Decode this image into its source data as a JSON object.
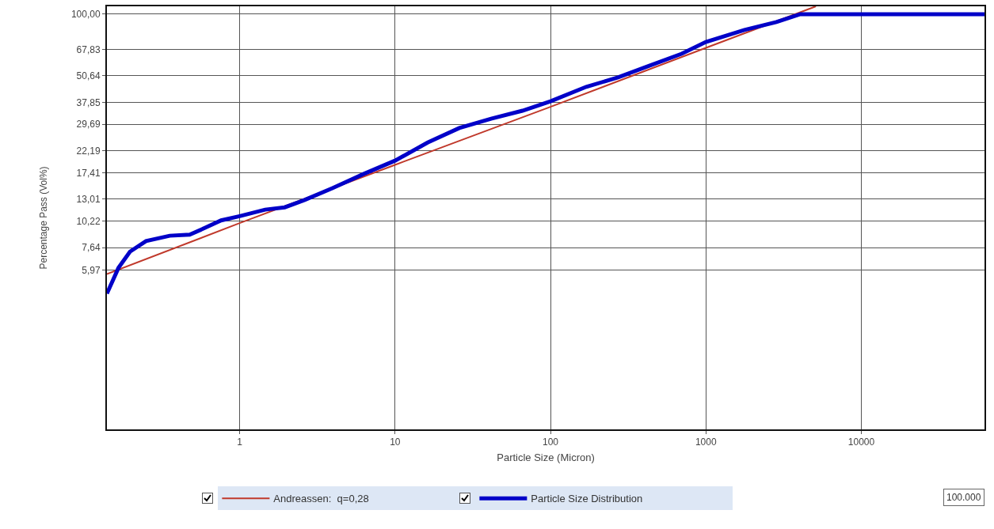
{
  "chart_data": {
    "type": "line",
    "xlabel": "Particle Size (Micron)",
    "ylabel": "Percentage Pass (Vol%)",
    "log": "xy",
    "xlim": [
      0.14,
      62000
    ],
    "xticks": [
      1,
      10,
      100,
      1000,
      10000
    ],
    "ylim": [
      1.03,
      109
    ],
    "yticks": [
      {
        "value": 5.97,
        "label": "5,97"
      },
      {
        "value": 7.64,
        "label": "7,64"
      },
      {
        "value": 10.22,
        "label": "10,22"
      },
      {
        "value": 13.01,
        "label": "13,01"
      },
      {
        "value": 17.41,
        "label": "17,41"
      },
      {
        "value": 22.19,
        "label": "22,19"
      },
      {
        "value": 29.69,
        "label": "29,69"
      },
      {
        "value": 37.85,
        "label": "37,85"
      },
      {
        "value": 50.64,
        "label": "50,64"
      },
      {
        "value": 67.83,
        "label": "67,83"
      },
      {
        "value": 100,
        "label": "100,00"
      }
    ],
    "grid": true,
    "legend": "bottom",
    "marker": "none",
    "line_style": "solid",
    "annotations": [
      "100.000"
    ],
    "series": [
      {
        "name": "Andreassen:  q=0,28",
        "color": "#c0392b",
        "x": [
          0.14,
          1,
          10,
          100,
          1000,
          5100
        ],
        "values": [
          5.7,
          10,
          19,
          36,
          69,
          109
        ]
      },
      {
        "name": "Particle Size Distribution",
        "color": "#0000c8",
        "x": [
          0.14,
          0.166,
          0.197,
          0.25,
          0.355,
          0.477,
          0.6,
          0.76,
          1,
          1.46,
          1.95,
          2.62,
          3.95,
          6.3,
          10,
          16.2,
          25.9,
          41.5,
          66,
          100,
          170,
          272,
          436,
          698,
          1000,
          1770,
          2840,
          4050,
          62000
        ],
        "values": [
          4.6,
          6.1,
          7.3,
          8.2,
          8.7,
          8.8,
          9.5,
          10.3,
          10.8,
          11.6,
          11.9,
          12.9,
          14.7,
          17.2,
          19.9,
          24.3,
          28.5,
          31.6,
          34.5,
          38.3,
          44.9,
          49.8,
          56.8,
          64.6,
          73.6,
          84,
          91.6,
          100,
          100
        ]
      }
    ]
  }
}
